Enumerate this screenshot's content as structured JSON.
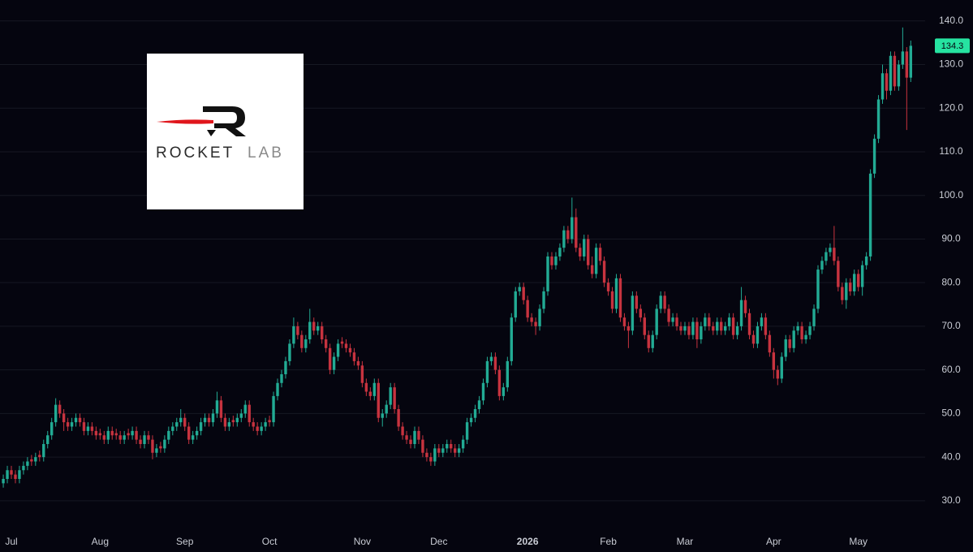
{
  "chart_data": {
    "type": "candlestick",
    "up_color": "#22ab94",
    "down_color": "#c7333f",
    "grid": true,
    "ylim": [
      22.9,
      144.8
    ],
    "yticks": [
      {
        "value": 30,
        "label": "30.0"
      },
      {
        "value": 40,
        "label": "40.0"
      },
      {
        "value": 50,
        "label": "50.0"
      },
      {
        "value": 60,
        "label": "60.0"
      },
      {
        "value": 70,
        "label": "70.0"
      },
      {
        "value": 80,
        "label": "80.0"
      },
      {
        "value": 90,
        "label": "90.0"
      },
      {
        "value": 100,
        "label": "100.0"
      },
      {
        "value": 110,
        "label": "110.0"
      },
      {
        "value": 120,
        "label": "120.0"
      },
      {
        "value": 130,
        "label": "130.0"
      },
      {
        "value": 140,
        "label": "140.0"
      }
    ],
    "categories": [
      null,
      null,
      "Jul",
      null,
      null,
      null,
      null,
      null,
      null,
      null,
      null,
      null,
      null,
      null,
      null,
      null,
      null,
      null,
      null,
      null,
      null,
      null,
      null,
      null,
      "Aug",
      null,
      null,
      null,
      null,
      null,
      null,
      null,
      null,
      null,
      null,
      null,
      null,
      null,
      null,
      null,
      null,
      null,
      null,
      null,
      null,
      "Sep",
      null,
      null,
      null,
      null,
      null,
      null,
      null,
      null,
      null,
      null,
      null,
      null,
      null,
      null,
      null,
      null,
      null,
      null,
      null,
      null,
      "Oct",
      null,
      null,
      null,
      null,
      null,
      null,
      null,
      null,
      null,
      null,
      null,
      null,
      null,
      null,
      null,
      null,
      null,
      null,
      null,
      null,
      null,
      null,
      "Nov",
      null,
      null,
      null,
      null,
      null,
      null,
      null,
      null,
      null,
      null,
      null,
      null,
      null,
      null,
      null,
      null,
      null,
      null,
      "Dec",
      null,
      null,
      null,
      null,
      null,
      null,
      null,
      null,
      null,
      null,
      null,
      null,
      null,
      null,
      null,
      null,
      null,
      null,
      null,
      null,
      null,
      "2026",
      null,
      null,
      null,
      null,
      null,
      null,
      null,
      null,
      null,
      null,
      null,
      null,
      null,
      null,
      null,
      null,
      null,
      null,
      null,
      "Feb",
      null,
      null,
      null,
      null,
      null,
      null,
      null,
      null,
      null,
      null,
      null,
      null,
      null,
      null,
      null,
      null,
      null,
      null,
      "Mar",
      null,
      null,
      null,
      null,
      null,
      null,
      null,
      null,
      null,
      null,
      null,
      null,
      null,
      null,
      null,
      null,
      null,
      null,
      null,
      null,
      null,
      "Apr",
      null,
      null,
      null,
      null,
      null,
      null,
      null,
      null,
      null,
      null,
      null,
      null,
      null,
      null,
      null,
      null,
      null,
      null,
      null,
      null,
      "May",
      null,
      null,
      null,
      null,
      null,
      null,
      null,
      null,
      null,
      null,
      null,
      null,
      null
    ],
    "open": [
      34,
      35,
      37,
      36,
      35,
      37,
      38,
      39.5,
      39,
      40.5,
      40,
      43,
      45,
      48,
      52,
      50,
      48,
      47,
      48,
      49,
      48,
      46,
      47,
      46,
      45.5,
      45,
      44,
      46,
      45.5,
      45,
      44,
      45.5,
      45,
      46,
      44,
      43,
      45,
      44,
      41,
      42.5,
      42,
      44,
      46,
      47,
      48,
      49,
      47,
      44,
      45,
      46,
      48,
      49,
      48,
      50,
      53,
      49,
      47,
      48.5,
      48,
      49,
      50,
      52,
      48,
      47,
      46,
      47,
      48.5,
      48,
      54,
      57,
      59,
      62,
      66,
      70,
      68,
      65,
      67,
      71,
      69,
      70,
      67,
      65,
      60,
      63,
      66.5,
      66,
      65,
      64,
      62,
      61,
      57,
      55,
      54,
      57,
      49,
      50,
      52,
      56,
      51,
      47,
      45,
      44,
      43,
      46,
      44,
      41,
      40,
      39,
      42,
      41,
      42,
      43,
      42,
      41,
      42,
      44,
      48,
      49,
      51,
      53,
      57,
      62,
      63,
      60,
      54,
      56,
      62,
      72,
      78,
      79,
      76,
      72,
      71,
      70,
      74,
      78,
      86,
      84,
      86,
      88,
      92,
      90,
      95,
      88,
      86,
      90,
      84,
      82,
      88,
      85,
      80,
      78,
      74,
      81,
      72,
      70,
      69,
      77,
      74,
      72,
      68,
      65,
      68,
      74,
      77,
      74,
      71,
      72,
      70,
      69,
      70,
      68,
      71,
      67,
      70,
      72,
      70,
      69,
      71,
      69,
      70,
      72,
      68,
      70,
      76,
      73,
      68,
      66,
      70,
      72,
      68,
      64,
      60,
      58,
      63,
      67,
      65,
      69,
      70,
      67,
      68,
      70,
      74,
      83,
      85,
      87,
      88,
      85,
      79,
      76,
      80,
      78,
      82,
      79,
      84,
      86,
      105,
      113,
      122,
      128,
      124,
      132,
      125,
      130,
      133,
      127
    ],
    "high": [
      36,
      38,
      38,
      37,
      38,
      39,
      40,
      40.5,
      41,
      41.5,
      44,
      46,
      49,
      53.5,
      53,
      51,
      49,
      49,
      50,
      50,
      49,
      48,
      48,
      47,
      46.5,
      46,
      47,
      47,
      46.5,
      46,
      46,
      46.5,
      47,
      47,
      45,
      46,
      46,
      45,
      43,
      43.5,
      45,
      47,
      48,
      49,
      51,
      50,
      48,
      46,
      47,
      49,
      50,
      50,
      51,
      55,
      54,
      50,
      49,
      49.5,
      50,
      51,
      53,
      53,
      49,
      48,
      48,
      49,
      49.5,
      55,
      58,
      60,
      63,
      67,
      72,
      71,
      69,
      68,
      74,
      72,
      71,
      71,
      68,
      66,
      64,
      67,
      67.5,
      67,
      66,
      65,
      63,
      62,
      58,
      56,
      58,
      58,
      51,
      53,
      57,
      57,
      52,
      48,
      46,
      45,
      47,
      47,
      45,
      42,
      41,
      43,
      43,
      43,
      44,
      44,
      43,
      43,
      45,
      49,
      50,
      52,
      54,
      58,
      63,
      64,
      64,
      61,
      57,
      63,
      73,
      79,
      80,
      80,
      77,
      73,
      72,
      75,
      79,
      87,
      87,
      87,
      89,
      93,
      93,
      99.5,
      97,
      89,
      91,
      91,
      86,
      89,
      89,
      86,
      81,
      79,
      82,
      82,
      73,
      71,
      78,
      78,
      75,
      73,
      69,
      69,
      75,
      78,
      78,
      75,
      73,
      73,
      71,
      71,
      71,
      72,
      72,
      71,
      73,
      73,
      71,
      72,
      72,
      71,
      73,
      73,
      71,
      79,
      77,
      74,
      69,
      71,
      73,
      73,
      69,
      65,
      61,
      64,
      68,
      68,
      70,
      71,
      71,
      69,
      71,
      75,
      84,
      86,
      88,
      89,
      93,
      86,
      80,
      81,
      81,
      83,
      83,
      85,
      87,
      106,
      114,
      123,
      130,
      129,
      133,
      133,
      131,
      138.5,
      134,
      135.5
    ],
    "low": [
      33,
      34,
      35,
      34,
      34,
      36,
      37,
      38,
      38,
      39,
      39,
      42,
      44,
      47,
      49,
      46,
      46,
      46,
      47,
      47,
      45,
      45,
      45,
      44,
      44,
      43,
      43,
      44,
      44,
      43,
      43,
      44,
      44,
      43,
      42,
      42,
      43,
      39.5,
      40,
      41,
      41,
      43,
      45,
      46,
      47,
      46,
      43,
      43,
      44,
      45,
      47,
      47,
      47,
      49,
      48,
      46,
      46,
      47,
      47,
      48,
      49,
      47,
      46,
      45,
      45,
      46,
      47,
      47,
      53,
      56,
      58,
      61,
      65,
      67,
      64,
      64,
      66,
      68,
      68,
      66,
      64,
      59,
      59,
      62,
      65,
      64,
      63,
      61,
      60,
      56,
      54,
      53,
      53,
      48,
      47,
      49,
      51,
      50,
      46,
      44,
      43,
      42,
      42,
      43,
      40,
      39,
      38,
      38,
      40,
      40,
      41,
      41,
      40,
      40,
      41,
      43,
      47,
      48,
      50,
      52,
      56,
      61,
      59,
      53,
      53,
      55,
      61,
      71,
      77,
      75,
      71,
      70,
      68,
      69,
      73,
      77,
      83,
      83,
      85,
      87,
      89,
      89,
      87,
      85,
      85,
      83,
      81,
      81,
      84,
      79,
      77,
      73,
      73,
      71,
      69,
      65,
      68,
      73,
      71,
      67,
      64,
      64,
      67,
      73,
      73,
      70,
      70,
      69,
      68,
      68,
      67,
      67,
      65,
      66,
      69,
      69,
      68,
      68,
      68,
      68,
      69,
      67,
      67,
      69,
      72,
      67,
      65,
      65,
      69,
      67,
      63,
      58,
      56.5,
      57,
      62,
      64,
      64,
      68,
      66,
      66,
      67,
      69,
      73,
      82,
      84,
      86,
      84,
      78,
      75,
      74,
      77,
      77,
      78,
      77,
      83,
      85,
      104,
      112,
      121,
      122,
      123,
      124,
      124,
      129,
      115,
      126
    ],
    "close": [
      35,
      37,
      36,
      35,
      37,
      38,
      39,
      39,
      40,
      40,
      43,
      45,
      48,
      52,
      50,
      48,
      47,
      48,
      49,
      48,
      46,
      47,
      46,
      45,
      45,
      44,
      46,
      45,
      45,
      44,
      45,
      45,
      46,
      44,
      43,
      45,
      44,
      41,
      42,
      42,
      44,
      46,
      47,
      48,
      49,
      47,
      44,
      45,
      46,
      48,
      49,
      48,
      50,
      53,
      49,
      47,
      48,
      48,
      49,
      50,
      52,
      48,
      47,
      46,
      47,
      48,
      48,
      54,
      57,
      59,
      62,
      66,
      70,
      68,
      65,
      67,
      71,
      69,
      70,
      67,
      65,
      60,
      63,
      66,
      66,
      65,
      64,
      62,
      61,
      57,
      55,
      54,
      57,
      49,
      50,
      52,
      56,
      51,
      47,
      45,
      44,
      43,
      46,
      44,
      41,
      40,
      39,
      42,
      41,
      42,
      43,
      42,
      41,
      42,
      44,
      48,
      49,
      51,
      53,
      57,
      62,
      63,
      60,
      54,
      56,
      62,
      72,
      78,
      79,
      76,
      72,
      71,
      70,
      74,
      78,
      86,
      84,
      86,
      88,
      92,
      90,
      95,
      88,
      86,
      90,
      84,
      82,
      88,
      85,
      80,
      78,
      74,
      81,
      72,
      70,
      69,
      77,
      74,
      72,
      68,
      65,
      68,
      74,
      77,
      74,
      71,
      72,
      70,
      69,
      70,
      68,
      71,
      67,
      70,
      72,
      70,
      69,
      71,
      69,
      70,
      72,
      68,
      70,
      76,
      73,
      68,
      66,
      70,
      72,
      68,
      64,
      60,
      58,
      63,
      67,
      65,
      69,
      70,
      67,
      68,
      70,
      74,
      83,
      85,
      87,
      88,
      85,
      79,
      76,
      80,
      78,
      82,
      79,
      84,
      86,
      105,
      113,
      122,
      128,
      124,
      132,
      125,
      130,
      133,
      127,
      134.3
    ]
  },
  "logo": {
    "word": "ROCKET",
    "word2": "LAB"
  }
}
